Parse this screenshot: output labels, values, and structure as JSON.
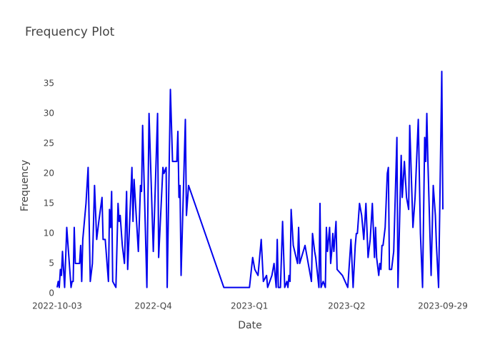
{
  "chart_data": {
    "type": "line",
    "title": "Frequency Plot",
    "xlabel": "Date",
    "ylabel": "Frequency",
    "color": "#0000ee",
    "x": [
      "2022-10-03",
      "2022-10-04",
      "2022-10-05",
      "2022-10-06",
      "2022-10-07",
      "2022-10-08",
      "2022-10-10",
      "2022-10-12",
      "2022-10-14",
      "2022-10-16",
      "2022-10-17",
      "2022-10-18",
      "2022-10-19",
      "2022-10-20",
      "2022-10-22",
      "2022-10-24",
      "2022-10-25",
      "2022-10-26",
      "2022-10-27",
      "2022-10-30",
      "2022-11-01",
      "2022-11-03",
      "2022-11-05",
      "2022-11-07",
      "2022-11-09",
      "2022-11-11",
      "2022-11-14",
      "2022-11-15",
      "2022-11-17",
      "2022-11-20",
      "2022-11-21",
      "2022-11-22",
      "2022-11-23",
      "2022-11-24",
      "2022-11-27",
      "2022-11-29",
      "2022-11-30",
      "2022-12-01",
      "2022-12-03",
      "2022-12-05",
      "2022-12-07",
      "2022-12-08",
      "2022-12-12",
      "2022-12-13",
      "2022-12-14",
      "2022-12-16",
      "2022-12-18",
      "2022-12-20",
      "2022-12-21",
      "2022-12-22",
      "2022-12-26",
      "2022-12-28",
      "2023-01-01",
      "2023-01-05",
      "2023-01-06",
      "2023-01-10",
      "2023-01-11",
      "2023-01-13",
      "2023-01-14",
      "2023-01-17",
      "2023-01-19",
      "2023-01-21",
      "2023-01-23",
      "2023-01-24",
      "2023-01-25",
      "2023-01-26",
      "2023-01-27",
      "2023-01-31",
      "2023-02-01",
      "2023-02-03",
      "2023-03-08",
      "2023-04-01",
      "2023-04-04",
      "2023-04-06",
      "2023-04-09",
      "2023-04-12",
      "2023-04-14",
      "2023-04-17",
      "2023-04-18",
      "2023-04-22",
      "2023-04-24",
      "2023-04-26",
      "2023-04-27",
      "2023-04-28",
      "2023-04-30",
      "2023-05-02",
      "2023-05-04",
      "2023-05-06",
      "2023-05-07",
      "2023-05-08",
      "2023-05-09",
      "2023-05-10",
      "2023-05-12",
      "2023-05-16",
      "2023-05-17",
      "2023-05-18",
      "2023-05-23",
      "2023-05-26",
      "2023-05-29",
      "2023-05-30",
      "2023-06-01",
      "2023-06-02",
      "2023-06-05",
      "2023-06-06",
      "2023-06-07",
      "2023-06-09",
      "2023-06-11",
      "2023-06-12",
      "2023-06-13",
      "2023-06-15",
      "2023-06-16",
      "2023-06-17",
      "2023-06-18",
      "2023-06-19",
      "2023-06-21",
      "2023-06-22",
      "2023-06-27",
      "2023-07-02",
      "2023-07-05",
      "2023-07-07",
      "2023-07-09",
      "2023-07-10",
      "2023-07-11",
      "2023-07-13",
      "2023-07-15",
      "2023-07-17",
      "2023-07-19",
      "2023-07-21",
      "2023-07-23",
      "2023-07-25",
      "2023-07-27",
      "2023-07-28",
      "2023-07-29",
      "2023-07-31",
      "2023-08-01",
      "2023-08-02",
      "2023-08-03",
      "2023-08-04",
      "2023-08-06",
      "2023-08-08",
      "2023-08-09",
      "2023-08-10",
      "2023-08-12",
      "2023-08-14",
      "2023-08-17",
      "2023-08-18",
      "2023-08-21",
      "2023-08-22",
      "2023-08-24",
      "2023-08-26",
      "2023-08-28",
      "2023-08-29",
      "2023-09-01",
      "2023-09-03",
      "2023-09-06",
      "2023-09-08",
      "2023-09-10",
      "2023-09-12",
      "2023-09-13",
      "2023-09-14",
      "2023-09-15",
      "2023-09-18",
      "2023-09-20",
      "2023-09-22",
      "2023-09-23",
      "2023-09-25",
      "2023-09-28",
      "2023-09-29"
    ],
    "values": [
      1,
      2,
      1,
      4,
      3,
      7,
      1,
      11,
      6,
      1,
      2,
      2,
      11,
      5,
      5,
      5,
      8,
      2,
      9,
      15,
      21,
      2,
      5,
      18,
      9,
      12,
      16,
      9,
      9,
      2,
      14,
      11,
      17,
      2,
      1,
      15,
      12,
      13,
      8,
      5,
      17,
      4,
      21,
      12,
      19,
      13,
      7,
      18,
      17,
      28,
      1,
      30,
      7,
      30,
      6,
      21,
      20,
      21,
      1,
      34,
      22,
      22,
      22,
      27,
      16,
      18,
      3,
      29,
      13,
      18,
      1,
      1,
      6,
      4,
      3,
      9,
      2,
      3,
      1,
      3,
      5,
      1,
      9,
      1,
      1,
      12,
      1,
      2,
      1,
      3,
      2,
      14,
      8,
      5,
      11,
      5,
      8,
      5,
      2,
      10,
      7,
      6,
      1,
      15,
      1,
      2,
      1,
      11,
      7,
      11,
      5,
      7,
      10,
      7,
      12,
      4,
      3,
      1,
      9,
      1,
      8,
      10,
      10,
      15,
      13,
      9,
      15,
      6,
      9,
      15,
      6,
      11,
      6,
      3,
      5,
      4,
      8,
      8,
      11,
      20,
      21,
      4,
      4,
      7,
      26,
      1,
      23,
      16,
      22,
      16,
      14,
      28,
      11,
      16,
      29,
      10,
      1,
      26,
      22,
      30,
      22,
      3,
      18,
      13,
      8,
      1,
      37,
      14
    ],
    "xlim": [
      "2022-10-03",
      "2023-09-29"
    ],
    "xticks": [
      "2022-10-03",
      {
        "value": "2023-01-01",
        "label": "2022-Q4"
      },
      {
        "value": "2023-04-01",
        "label": "2023-Q1"
      },
      {
        "value": "2023-07-01",
        "label": "2023-Q2"
      },
      "2023-09-29"
    ],
    "ylim": [
      0,
      37
    ],
    "yticks": [
      0,
      5,
      10,
      15,
      20,
      25,
      30,
      35
    ]
  }
}
